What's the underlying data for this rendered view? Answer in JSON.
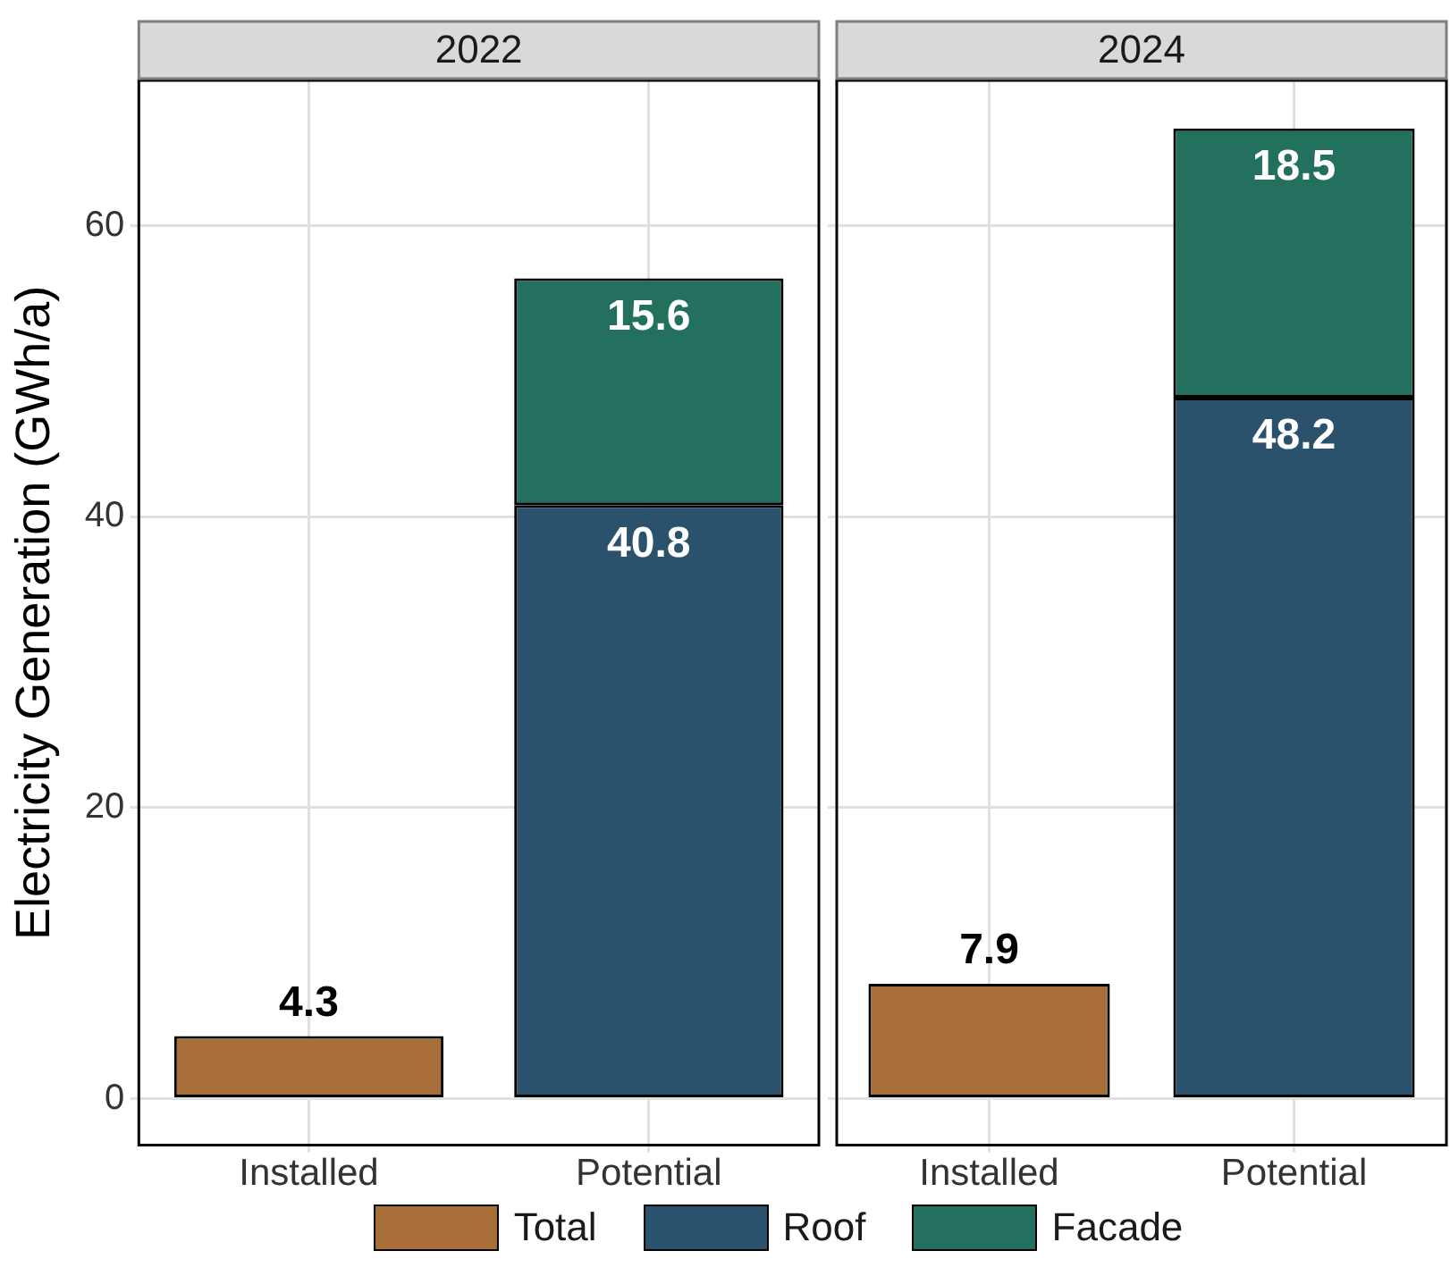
{
  "chart_data": [
    {
      "type": "bar",
      "title": "2022",
      "ylabel": "Electricity Generation (GWh/a)",
      "categories": [
        "Installed",
        "Potential"
      ],
      "stacked": true,
      "data_labels": true,
      "grid": true,
      "legend": "bottom",
      "ylim": [
        -3.2,
        70
      ],
      "yticks": [
        0,
        20,
        40,
        60
      ],
      "series": [
        {
          "name": "Total",
          "color": "#a86f3b",
          "values": [
            4.3,
            null
          ]
        },
        {
          "name": "Roof",
          "color": "#2a526c",
          "values": [
            null,
            40.8
          ]
        },
        {
          "name": "Facade",
          "color": "#24705e",
          "values": [
            null,
            15.6
          ]
        }
      ]
    },
    {
      "type": "bar",
      "title": "2024",
      "categories": [
        "Installed",
        "Potential"
      ],
      "stacked": true,
      "data_labels": true,
      "grid": true,
      "tick_labels": "x",
      "ylim": [
        -3.2,
        70
      ],
      "yticks": [
        0,
        20,
        40,
        60
      ],
      "series": [
        {
          "color": "#a86f3b",
          "values": [
            7.9,
            null
          ]
        },
        {
          "color": "#2a526c",
          "values": [
            null,
            48.2
          ]
        },
        {
          "color": "#24705e",
          "values": [
            null,
            18.5
          ]
        }
      ]
    }
  ]
}
